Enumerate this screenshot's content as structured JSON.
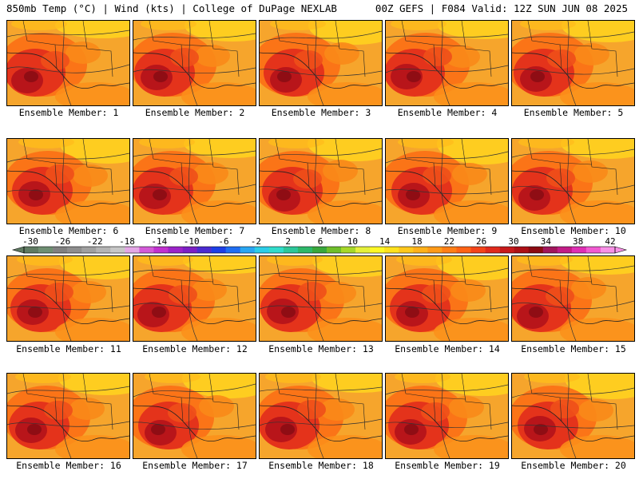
{
  "header": {
    "left_title": "850mb Temp (°C) | Wind (kts) | College of DuPage NEXLAB",
    "right_title": "00Z GEFS | F084 Valid: 12Z SUN JUN 08 2025"
  },
  "colorbar": {
    "ticks": [
      "-30",
      "-26",
      "-22",
      "-18",
      "-14",
      "-10",
      "-6",
      "-2",
      "2",
      "6",
      "10",
      "14",
      "18",
      "22",
      "26",
      "30",
      "34",
      "38",
      "42"
    ],
    "colors": [
      "#5f7a62",
      "#6e8f72",
      "#808080",
      "#8e8e8e",
      "#a0a0a0",
      "#b4b4b4",
      "#c7c7c7",
      "#e4a7e6",
      "#d35ad8",
      "#c130cf",
      "#9b23c9",
      "#7c1fc4",
      "#4b2bd0",
      "#1d3fe6",
      "#1f6ef2",
      "#29a6f2",
      "#2ccde8",
      "#31dccb",
      "#2cc79a",
      "#2db86a",
      "#39a83c",
      "#6fbf2a",
      "#a7d829",
      "#e5f03a",
      "#fff826",
      "#ffe11d",
      "#ffc81c",
      "#ffb11a",
      "#ff9a18",
      "#ff7f16",
      "#ff6316",
      "#f4441a",
      "#e02a1c",
      "#c71a1b",
      "#ad1016",
      "#8c0a12",
      "#a1165c",
      "#c21c87",
      "#df2fb4",
      "#f15ad1",
      "#f891e6"
    ]
  },
  "members": [
    {
      "label": "Ensemble Member: 1"
    },
    {
      "label": "Ensemble Member: 2"
    },
    {
      "label": "Ensemble Member: 3"
    },
    {
      "label": "Ensemble Member: 4"
    },
    {
      "label": "Ensemble Member: 5"
    },
    {
      "label": "Ensemble Member: 6"
    },
    {
      "label": "Ensemble Member: 7"
    },
    {
      "label": "Ensemble Member: 8"
    },
    {
      "label": "Ensemble Member: 9"
    },
    {
      "label": "Ensemble Member: 10"
    },
    {
      "label": "Ensemble Member: 11"
    },
    {
      "label": "Ensemble Member: 12"
    },
    {
      "label": "Ensemble Member: 13"
    },
    {
      "label": "Ensemble Member: 14"
    },
    {
      "label": "Ensemble Member: 15"
    },
    {
      "label": "Ensemble Member: 16"
    },
    {
      "label": "Ensemble Member: 17"
    },
    {
      "label": "Ensemble Member: 18"
    },
    {
      "label": "Ensemble Member: 19"
    },
    {
      "label": "Ensemble Member: 20"
    }
  ]
}
